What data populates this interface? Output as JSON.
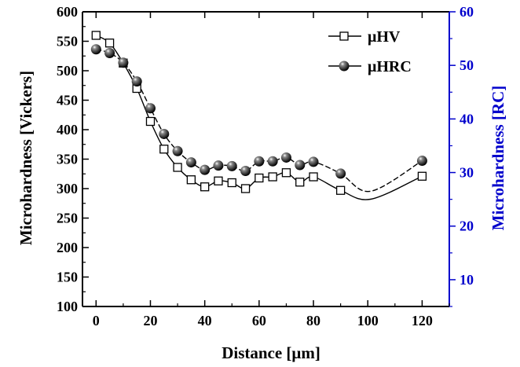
{
  "chart_data": {
    "type": "scatter",
    "title": "",
    "xlabel": "Distance [μm]",
    "ylabel_left": "Microhardness [Vickers]",
    "ylabel_right": "Microhardness [RC]",
    "xlim": [
      -5,
      130
    ],
    "ylim_left": [
      100,
      600
    ],
    "ylim_right": [
      5,
      60
    ],
    "x_ticks": [
      0,
      20,
      40,
      60,
      80,
      100,
      120
    ],
    "y_left_ticks": [
      100,
      150,
      200,
      250,
      300,
      350,
      400,
      450,
      500,
      550,
      600
    ],
    "y_right_ticks": [
      10,
      20,
      30,
      40,
      50,
      60
    ],
    "grid": false,
    "legend_position": "top-right",
    "colors": {
      "axis": "#000000",
      "right_axis": "#0000cc",
      "series": "#000000"
    },
    "series": [
      {
        "name": "μHV",
        "axis": "left",
        "marker": "open-square",
        "x": [
          0,
          5,
          10,
          15,
          20,
          25,
          30,
          35,
          40,
          45,
          50,
          55,
          60,
          65,
          70,
          75,
          80,
          90,
          120
        ],
        "values": [
          560,
          547,
          513,
          470,
          414,
          367,
          336,
          315,
          303,
          313,
          310,
          300,
          318,
          320,
          327,
          311,
          320,
          297,
          321
        ]
      },
      {
        "name": "μHRC",
        "axis": "right",
        "marker": "filled-sphere",
        "x": [
          0,
          5,
          10,
          15,
          20,
          25,
          30,
          35,
          40,
          45,
          50,
          55,
          60,
          65,
          70,
          75,
          80,
          90,
          120
        ],
        "values": [
          53.0,
          52.3,
          50.5,
          47.0,
          42.0,
          37.2,
          34.0,
          31.9,
          30.5,
          31.3,
          31.2,
          30.3,
          32.1,
          32.1,
          32.8,
          31.4,
          32.0,
          29.8,
          32.2
        ]
      }
    ]
  }
}
